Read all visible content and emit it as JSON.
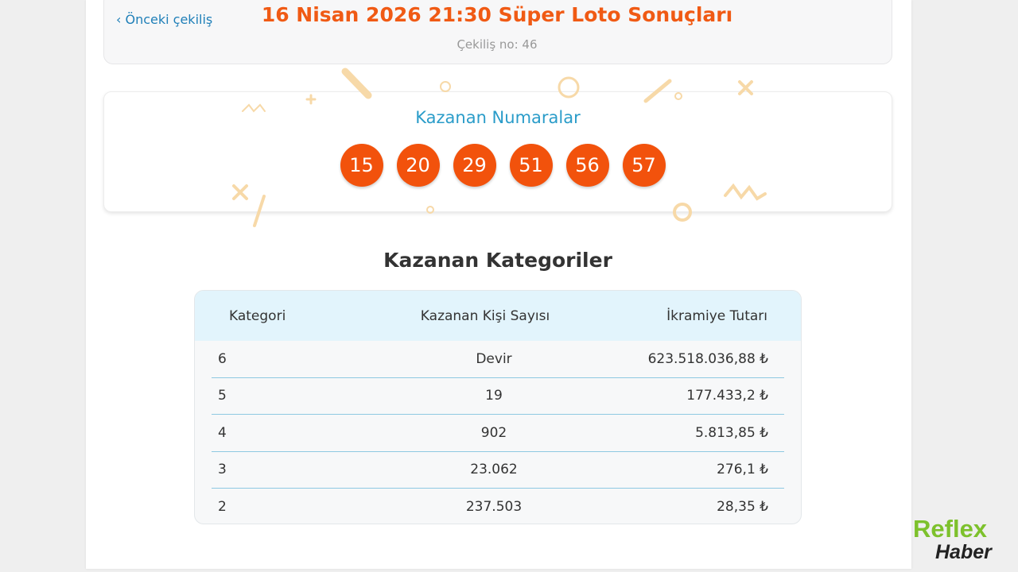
{
  "header": {
    "prev_label": "Önceki çekiliş",
    "title": "16 Nisan 2026 21:30 Süper Loto Sonuçları",
    "draw_no": "Çekiliş no: 46"
  },
  "winning": {
    "title": "Kazanan Numaralar",
    "numbers": [
      "15",
      "20",
      "29",
      "51",
      "56",
      "57"
    ],
    "ball_color": "#f2520c"
  },
  "categories": {
    "title": "Kazanan Kategoriler",
    "columns": [
      "Kategori",
      "Kazanan Kişi Sayısı",
      "İkramiye Tutarı"
    ],
    "rows": [
      [
        "6",
        "Devir",
        "623.518.036,88 ₺"
      ],
      [
        "5",
        "19",
        "177.433,2 ₺"
      ],
      [
        "4",
        "902",
        "5.813,85 ₺"
      ],
      [
        "3",
        "23.062",
        "276,1 ₺"
      ],
      [
        "2",
        "237.503",
        "28,35 ₺"
      ]
    ]
  },
  "logo": {
    "line1": "Reflex",
    "line2": "Haber"
  }
}
